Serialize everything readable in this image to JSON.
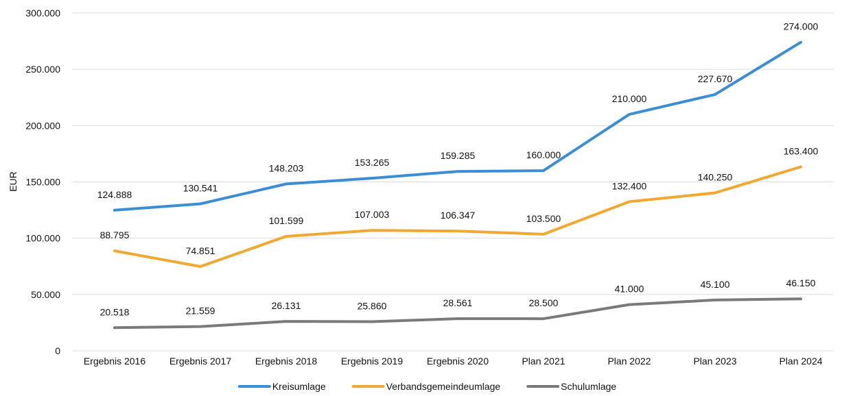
{
  "chart_data": {
    "type": "line",
    "title": "",
    "xlabel": "",
    "ylabel": "EUR",
    "ylim": [
      0,
      300000
    ],
    "yticks": [
      0,
      50000,
      100000,
      150000,
      200000,
      250000,
      300000
    ],
    "ytick_labels": [
      "0",
      "50.000",
      "100.000",
      "150.000",
      "200.000",
      "250.000",
      "300.000"
    ],
    "grid": true,
    "legend_position": "bottom",
    "categories": [
      "Ergebnis 2016",
      "Ergebnis 2017",
      "Ergebnis 2018",
      "Ergebnis 2019",
      "Ergebnis 2020",
      "Plan 2021",
      "Plan 2022",
      "Plan 2023",
      "Plan 2024"
    ],
    "series": [
      {
        "name": "Kreisumlage",
        "color": "#3b8ed4",
        "values": [
          124888,
          130541,
          148203,
          153265,
          159285,
          160000,
          210000,
          227670,
          274000
        ],
        "labels": [
          "124.888",
          "130.541",
          "148.203",
          "153.265",
          "159.285",
          "160.000",
          "210.000",
          "227.670",
          "274.000"
        ]
      },
      {
        "name": "Verbandsgemeindeumlage",
        "color": "#f0a830",
        "values": [
          88795,
          74851,
          101599,
          107003,
          106347,
          103500,
          132400,
          140250,
          163400
        ],
        "labels": [
          "88.795",
          "74.851",
          "101.599",
          "107.003",
          "106.347",
          "103.500",
          "132.400",
          "140.250",
          "163.400"
        ]
      },
      {
        "name": "Schulumlage",
        "color": "#7a7a7a",
        "values": [
          20518,
          21559,
          26131,
          25860,
          28561,
          28500,
          41000,
          45100,
          46150
        ],
        "labels": [
          "20.518",
          "21.559",
          "26.131",
          "25.860",
          "28.561",
          "28.500",
          "41.000",
          "45.100",
          "46.150"
        ]
      }
    ]
  }
}
